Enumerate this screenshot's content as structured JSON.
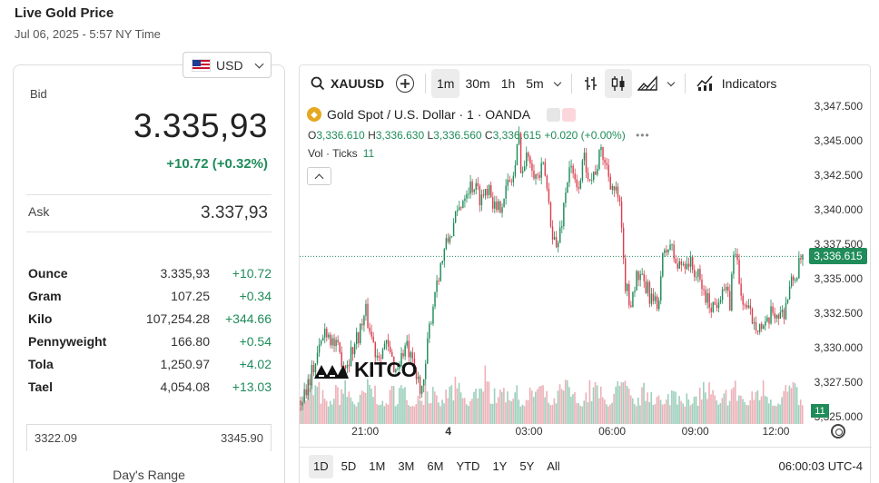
{
  "header": {
    "title": "Live Gold Price",
    "subtitle": "Jul 06, 2025 - 5:57 NY Time"
  },
  "currency": {
    "label": "USD",
    "flag_icon": "us-flag-icon"
  },
  "quote": {
    "bid_label": "Bid",
    "bid": "3.335,93",
    "bid_change": "+10.72 (+0.32%)",
    "ask_label": "Ask",
    "ask": "3.337,93"
  },
  "units": [
    {
      "name": "Ounce",
      "price": "3.335,93",
      "change": "+10.72"
    },
    {
      "name": "Gram",
      "price": "107.25",
      "change": "+0.34"
    },
    {
      "name": "Kilo",
      "price": "107,254.28",
      "change": "+344.66"
    },
    {
      "name": "Pennyweight",
      "price": "166.80",
      "change": "+0.54"
    },
    {
      "name": "Tola",
      "price": "1,250.97",
      "change": "+4.02"
    },
    {
      "name": "Tael",
      "price": "4,054.08",
      "change": "+13.03"
    }
  ],
  "day_range": {
    "low": "3322.09",
    "high": "3345.90",
    "label": "Day's Range"
  },
  "toolbar": {
    "symbol": "XAUUSD",
    "intervals": [
      "1m",
      "30m",
      "1h",
      "5m"
    ],
    "active_interval": "1m",
    "indicators_label": "Indicators"
  },
  "legend": {
    "title": "Gold Spot / U.S. Dollar · 1 · OANDA",
    "o_label": "O",
    "o": "3,336.610",
    "h_label": "H",
    "h": "3,336.630",
    "l_label": "L",
    "l": "3,336.560",
    "c_label": "C",
    "c": "3,336.615",
    "chg": "+0.020 (+0.00%)",
    "vol_label": "Vol · Ticks",
    "vol": "11"
  },
  "range_buttons": [
    "1D",
    "5D",
    "1M",
    "3M",
    "6M",
    "YTD",
    "1Y",
    "5Y",
    "All"
  ],
  "active_range": "1D",
  "clock": "06:00:03 UTC-4",
  "logo_text": "KITCO",
  "colors": {
    "up": "#1f8c5a",
    "down": "#d9404f",
    "accent": "#1f8c5a"
  },
  "chart_data": {
    "type": "candlestick",
    "x_tick_labels": [
      "21:00",
      "4",
      "03:00",
      "06:00",
      "09:00",
      "12:00"
    ],
    "y_tick_labels": [
      "3,347.500",
      "3,345.000",
      "3,342.500",
      "3,340.000",
      "3,337.500",
      "3,335.000",
      "3,332.500",
      "3,330.000",
      "3,327.500",
      "3,325.000"
    ],
    "ylim": [
      3324.5,
      3347.8
    ],
    "last_price": "3,336.615",
    "last_volume": "11",
    "path": [
      [
        0,
        3326.2
      ],
      [
        0.03,
        3329.0
      ],
      [
        0.05,
        3331.5
      ],
      [
        0.07,
        3330.0
      ],
      [
        0.09,
        3328.8
      ],
      [
        0.11,
        3330.5
      ],
      [
        0.13,
        3332.5
      ],
      [
        0.15,
        3329.6
      ],
      [
        0.17,
        3330.2
      ],
      [
        0.19,
        3328.4
      ],
      [
        0.21,
        3330.2
      ],
      [
        0.23,
        3327.8
      ],
      [
        0.245,
        3327.0
      ],
      [
        0.255,
        3331.0
      ],
      [
        0.27,
        3334.8
      ],
      [
        0.29,
        3337.4
      ],
      [
        0.31,
        3339.4
      ],
      [
        0.33,
        3341.6
      ],
      [
        0.345,
        3341.8
      ],
      [
        0.36,
        3340.8
      ],
      [
        0.375,
        3342.0
      ],
      [
        0.39,
        3339.6
      ],
      [
        0.405,
        3341.2
      ],
      [
        0.425,
        3342.5
      ],
      [
        0.435,
        3345.3
      ],
      [
        0.44,
        3342.6
      ],
      [
        0.455,
        3344.2
      ],
      [
        0.47,
        3342.2
      ],
      [
        0.485,
        3343.0
      ],
      [
        0.5,
        3338.8
      ],
      [
        0.51,
        3337.0
      ],
      [
        0.52,
        3339.2
      ],
      [
        0.535,
        3343.2
      ],
      [
        0.55,
        3341.4
      ],
      [
        0.565,
        3343.6
      ],
      [
        0.58,
        3342.2
      ],
      [
        0.6,
        3344.2
      ],
      [
        0.62,
        3341.8
      ],
      [
        0.635,
        3340.5
      ],
      [
        0.645,
        3335.0
      ],
      [
        0.655,
        3333.2
      ],
      [
        0.67,
        3335.2
      ],
      [
        0.69,
        3334.2
      ],
      [
        0.71,
        3332.8
      ],
      [
        0.72,
        3336.2
      ],
      [
        0.735,
        3337.6
      ],
      [
        0.75,
        3335.8
      ],
      [
        0.77,
        3336.4
      ],
      [
        0.79,
        3335.2
      ],
      [
        0.81,
        3333.4
      ],
      [
        0.825,
        3333.0
      ],
      [
        0.84,
        3334.5
      ],
      [
        0.855,
        3333.2
      ],
      [
        0.865,
        3337.8
      ],
      [
        0.875,
        3334.0
      ],
      [
        0.89,
        3332.6
      ],
      [
        0.91,
        3331.8
      ],
      [
        0.925,
        3331.2
      ],
      [
        0.94,
        3332.6
      ],
      [
        0.96,
        3332.4
      ],
      [
        0.975,
        3334.4
      ],
      [
        0.99,
        3335.6
      ],
      [
        1.0,
        3336.6
      ]
    ]
  }
}
